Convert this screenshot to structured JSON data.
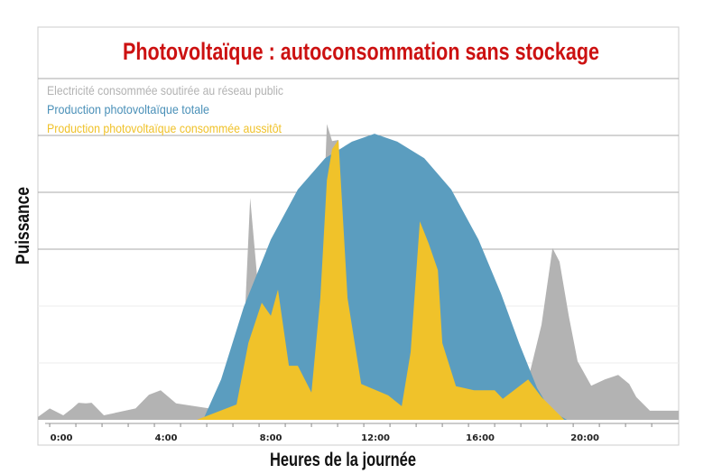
{
  "chart_data": {
    "type": "area",
    "title": "Photovoltaïque : autoconsommation sans stockage",
    "xlabel": "Heures de la journée",
    "ylabel": "Puissance",
    "x_tick_labels": [
      "0:00",
      "4:00",
      "8:00",
      "12:00",
      "16:00",
      "20:00"
    ],
    "x_tick_hours": [
      0,
      4,
      8,
      12,
      16,
      20
    ],
    "xlim": [
      -0.45,
      24.03
    ],
    "ylim": [
      0,
      7.2
    ],
    "grid": true,
    "legend_placement": "top-left",
    "series": [
      {
        "name": "Electricité consommée soutirée au réseau public",
        "color": "#b3b3b3",
        "points": [
          [
            -0.45,
            0.05
          ],
          [
            0,
            0.2
          ],
          [
            0.52,
            0.08
          ],
          [
            0.86,
            0.2
          ],
          [
            1.1,
            0.3
          ],
          [
            1.38,
            0.29
          ],
          [
            1.6,
            0.3
          ],
          [
            2.07,
            0.08
          ],
          [
            3.28,
            0.2
          ],
          [
            3.6,
            0.35
          ],
          [
            3.79,
            0.44
          ],
          [
            4.24,
            0.52
          ],
          [
            4.83,
            0.29
          ],
          [
            6.1,
            0.2
          ],
          [
            7.14,
            0.16
          ],
          [
            7.41,
            1.35
          ],
          [
            7.66,
            3.9
          ],
          [
            7.93,
            2.5
          ],
          [
            8.1,
            2.06
          ],
          [
            8.45,
            1.83
          ],
          [
            8.72,
            2.29
          ],
          [
            9.14,
            0.95
          ],
          [
            9.48,
            0.95
          ],
          [
            10.0,
            0.48
          ],
          [
            10.34,
            2.14
          ],
          [
            10.59,
            5.2
          ],
          [
            10.79,
            4.9
          ],
          [
            11.03,
            4.92
          ],
          [
            11.38,
            2.14
          ],
          [
            11.9,
            0.63
          ],
          [
            12.93,
            0.43
          ],
          [
            13.45,
            0.24
          ],
          [
            13.79,
            1.19
          ],
          [
            14.14,
            3.49
          ],
          [
            14.48,
            3.1
          ],
          [
            14.83,
            2.63
          ],
          [
            15.0,
            1.35
          ],
          [
            15.52,
            0.59
          ],
          [
            16.21,
            0.52
          ],
          [
            17.0,
            0.52
          ],
          [
            17.31,
            0.37
          ],
          [
            18.28,
            0.71
          ],
          [
            18.79,
            1.67
          ],
          [
            19.21,
            3.02
          ],
          [
            19.48,
            2.78
          ],
          [
            19.83,
            1.83
          ],
          [
            20.17,
            1.03
          ],
          [
            20.69,
            0.6
          ],
          [
            21.21,
            0.71
          ],
          [
            21.72,
            0.79
          ],
          [
            22.14,
            0.63
          ],
          [
            22.41,
            0.4
          ],
          [
            22.93,
            0.16
          ],
          [
            24.03,
            0.16
          ]
        ]
      },
      {
        "name": "Production photovoltaïque totale",
        "color": "#5b9dbf",
        "points": [
          [
            5.86,
            0
          ],
          [
            6.55,
            0.71
          ],
          [
            7.41,
            1.98
          ],
          [
            8.45,
            3.17
          ],
          [
            9.48,
            4.05
          ],
          [
            10.52,
            4.6
          ],
          [
            11.55,
            4.89
          ],
          [
            12.41,
            5.03
          ],
          [
            13.28,
            4.89
          ],
          [
            14.31,
            4.6
          ],
          [
            15.34,
            4.05
          ],
          [
            16.38,
            3.17
          ],
          [
            17.24,
            2.22
          ],
          [
            17.93,
            1.35
          ],
          [
            18.62,
            0.56
          ],
          [
            19.14,
            0.16
          ],
          [
            19.76,
            0
          ]
        ]
      },
      {
        "name": "Production photovoltaïque consommée aussitôt",
        "color": "#f0c22a",
        "points": [
          [
            5.62,
            0
          ],
          [
            7.14,
            0.27
          ],
          [
            7.59,
            1.35
          ],
          [
            8.1,
            2.06
          ],
          [
            8.45,
            1.83
          ],
          [
            8.72,
            2.29
          ],
          [
            9.14,
            0.95
          ],
          [
            9.48,
            0.95
          ],
          [
            10.0,
            0.48
          ],
          [
            10.34,
            2.14
          ],
          [
            10.59,
            4.21
          ],
          [
            10.79,
            4.76
          ],
          [
            11.03,
            4.92
          ],
          [
            11.38,
            2.14
          ],
          [
            11.9,
            0.63
          ],
          [
            12.93,
            0.43
          ],
          [
            13.45,
            0.24
          ],
          [
            13.79,
            1.19
          ],
          [
            14.14,
            3.49
          ],
          [
            14.48,
            3.1
          ],
          [
            14.83,
            2.63
          ],
          [
            15.0,
            1.35
          ],
          [
            15.52,
            0.59
          ],
          [
            16.21,
            0.52
          ],
          [
            17.0,
            0.52
          ],
          [
            17.31,
            0.37
          ],
          [
            18.28,
            0.71
          ],
          [
            18.79,
            0.4
          ],
          [
            19.66,
            0
          ]
        ]
      }
    ]
  }
}
